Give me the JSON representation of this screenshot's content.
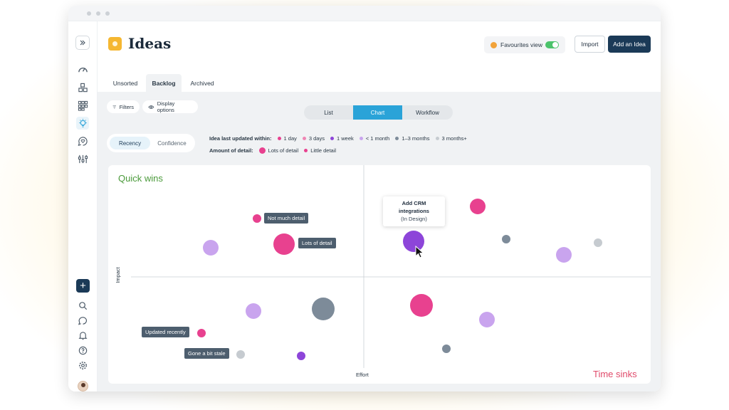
{
  "app": {
    "title": "Ideas",
    "favourites_label": "Favourites view",
    "import_label": "Import",
    "add_label": "Add an Idea"
  },
  "tabs": [
    "Unsorted",
    "Backlog",
    "Archived"
  ],
  "toolbar": {
    "filters_label": "Filters",
    "display_label": "Display options",
    "views": [
      "List",
      "Chart",
      "Workflow"
    ],
    "active_view": "Chart",
    "modes": [
      "Recency",
      "Confidence"
    ],
    "active_mode": "Recency"
  },
  "legend": {
    "updated_title": "Idea last updated within:",
    "updated_items": [
      {
        "label": "1 day",
        "color": "#e8418f"
      },
      {
        "label": "3 days",
        "color": "#ef86b4"
      },
      {
        "label": "1 week",
        "color": "#8d45d9"
      },
      {
        "label": "< 1 month",
        "color": "#c9a4ee"
      },
      {
        "label": "1–3 months",
        "color": "#7d8b99"
      },
      {
        "label": "3 months+",
        "color": "#c6cbd0"
      }
    ],
    "detail_title": "Amount of detail:",
    "detail_items": [
      {
        "label": "Lots of detail",
        "color": "#e8418f"
      },
      {
        "label": "Little detail",
        "color": "#e8418f"
      }
    ]
  },
  "chart": {
    "quadrants": {
      "top_left": "Quick wins",
      "bottom_right": "Time sinks"
    },
    "x_axis_label": "Effort",
    "y_axis_label": "Impact",
    "highlight_card": {
      "title": "Add CRM integrations",
      "status": "(In Design)"
    },
    "tooltips": {
      "not_much_detail": "Not much detail",
      "lots_of_detail": "Lots of detail",
      "updated_recently": "Updated recently",
      "gone_stale": "Gone a bit stale"
    },
    "colors": {
      "quick_wins": "#4a9a3a",
      "time_sinks": "#e04a6a"
    }
  }
}
